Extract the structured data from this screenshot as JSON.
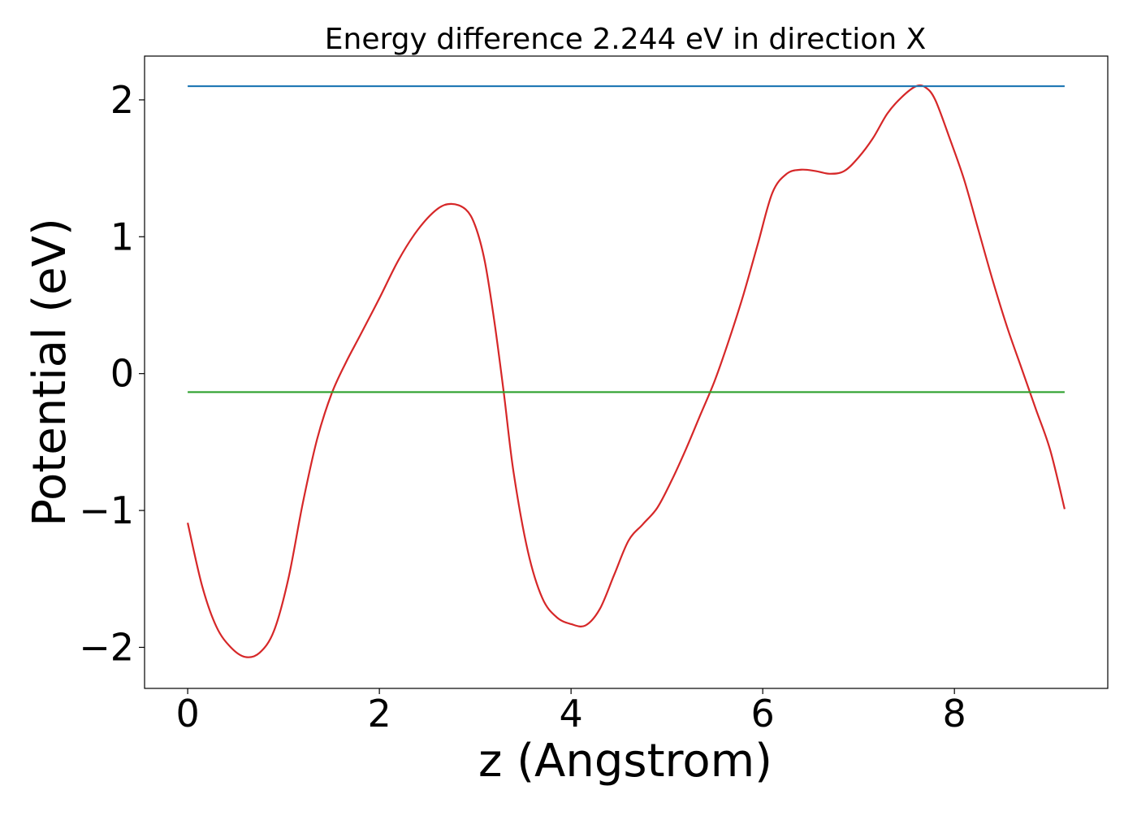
{
  "chart_data": {
    "type": "line",
    "title": "Energy difference 2.244 eV in direction X",
    "xlabel": "z (Angstrom)",
    "ylabel": "Potential (eV)",
    "xlim": [
      -0.45,
      9.6
    ],
    "ylim": [
      -2.3,
      2.32
    ],
    "xticks": [
      0,
      2,
      4,
      6,
      8
    ],
    "xtick_labels": [
      "0",
      "2",
      "4",
      "6",
      "8"
    ],
    "yticks": [
      -2,
      -1,
      0,
      1,
      2
    ],
    "ytick_labels": [
      "−2",
      "−1",
      "0",
      "1",
      "2"
    ],
    "grid": false,
    "series": [
      {
        "color": "#d62728",
        "x": [
          0,
          0.15,
          0.3,
          0.45,
          0.6,
          0.75,
          0.9,
          1.05,
          1.2,
          1.35,
          1.5,
          1.65,
          1.8,
          2.0,
          2.2,
          2.4,
          2.6,
          2.75,
          2.9,
          3.0,
          3.1,
          3.2,
          3.3,
          3.4,
          3.55,
          3.7,
          3.85,
          4.0,
          4.15,
          4.3,
          4.45,
          4.6,
          4.75,
          4.9,
          5.05,
          5.2,
          5.35,
          5.5,
          5.65,
          5.8,
          5.95,
          6.1,
          6.25,
          6.4,
          6.55,
          6.7,
          6.85,
          7.0,
          7.15,
          7.3,
          7.45,
          7.6,
          7.7,
          7.8,
          7.95,
          8.1,
          8.25,
          8.4,
          8.55,
          8.7,
          8.85,
          9.0,
          9.15
        ],
        "values": [
          -1.09,
          -1.55,
          -1.85,
          -2.0,
          -2.07,
          -2.04,
          -1.88,
          -1.5,
          -0.95,
          -0.48,
          -0.15,
          0.08,
          0.28,
          0.55,
          0.83,
          1.05,
          1.2,
          1.24,
          1.2,
          1.08,
          0.82,
          0.38,
          -0.15,
          -0.72,
          -1.3,
          -1.64,
          -1.78,
          -1.83,
          -1.84,
          -1.72,
          -1.47,
          -1.22,
          -1.1,
          -0.98,
          -0.78,
          -0.55,
          -0.3,
          -0.05,
          0.25,
          0.58,
          0.95,
          1.32,
          1.46,
          1.49,
          1.48,
          1.46,
          1.48,
          1.58,
          1.72,
          1.9,
          2.02,
          2.1,
          2.09,
          2.0,
          1.72,
          1.42,
          1.05,
          0.68,
          0.34,
          0.04,
          -0.26,
          -0.56,
          -0.99
        ]
      },
      {
        "color": "#1f77b4",
        "x": [
          0,
          9.15
        ],
        "values": [
          2.1,
          2.1
        ]
      },
      {
        "color": "#2ca02c",
        "x": [
          0,
          9.15
        ],
        "values": [
          -0.135,
          -0.135
        ]
      }
    ]
  }
}
